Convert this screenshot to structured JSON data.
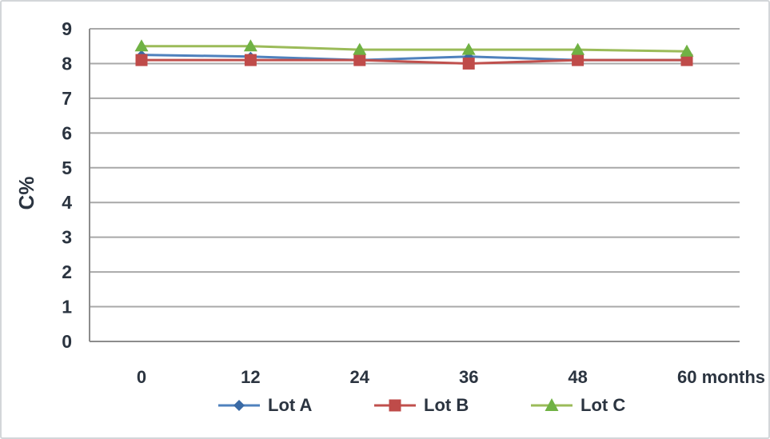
{
  "figure": {
    "background": "#ffffff",
    "border_color": "#d3d6d9"
  },
  "colors": {
    "gridline": "#a8a8a8",
    "axis": "#8c8c8c",
    "text": "#2b3440",
    "axis_title_text": "#1a1a1a"
  },
  "chart_data": {
    "type": "line",
    "title": "",
    "xlabel": "months",
    "ylabel": "C%",
    "ylim": [
      0,
      9
    ],
    "x_ticks": [
      0,
      12,
      24,
      36,
      48,
      60
    ],
    "x_tick_labels": [
      "0",
      "12",
      "24",
      "36",
      "48",
      "60 months"
    ],
    "y_ticks": [
      0,
      1,
      2,
      3,
      4,
      5,
      6,
      7,
      8,
      9
    ],
    "y_tick_labels": [
      "0",
      "1",
      "2",
      "3",
      "4",
      "5",
      "6",
      "7",
      "8",
      "9"
    ],
    "grid": "horizontal-major",
    "legend_position": "bottom",
    "series": [
      {
        "id": "lot-a",
        "name": "Lot A",
        "marker": "diamond",
        "color": "#4f81bd",
        "marker_color": "#3a6aa5",
        "values": [
          8.25,
          8.2,
          8.1,
          8.2,
          8.1,
          8.1
        ]
      },
      {
        "id": "lot-b",
        "name": "Lot B",
        "marker": "square",
        "color": "#c0504d",
        "marker_color": "#bf4b49",
        "values": [
          8.1,
          8.1,
          8.1,
          8.0,
          8.1,
          8.1
        ]
      },
      {
        "id": "lot-c",
        "name": "Lot C",
        "marker": "triangle",
        "color": "#9bbb59",
        "marker_color": "#70b244",
        "values": [
          8.5,
          8.5,
          8.4,
          8.4,
          8.4,
          8.35
        ]
      }
    ]
  }
}
